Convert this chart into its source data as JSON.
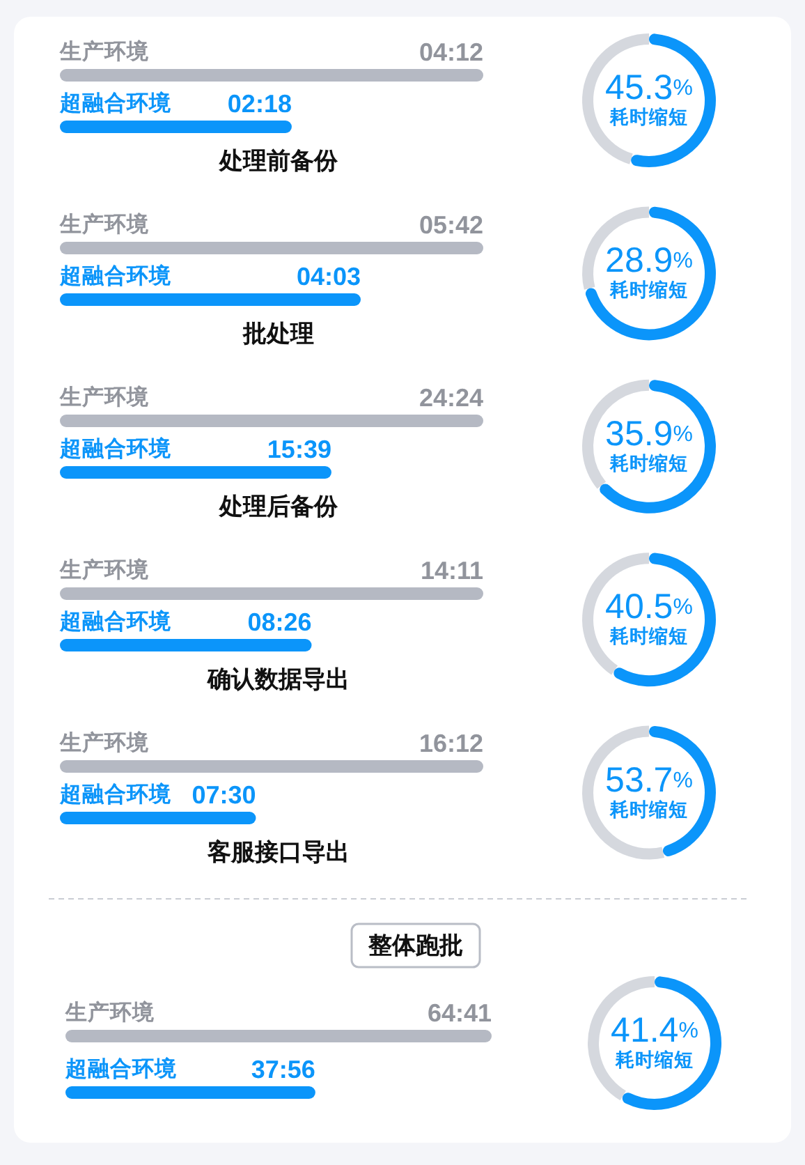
{
  "chart_data": [
    {
      "type": "bar",
      "orientation": "horizontal",
      "title": "处理前备份",
      "categories": [
        "生产环境",
        "超融合环境"
      ],
      "values": [
        252,
        138
      ],
      "colors": [
        "#b5b9c3",
        "#0b95fa"
      ],
      "value_labels": [
        "04:12",
        "02:18"
      ]
    },
    {
      "type": "donut",
      "categories": [
        null,
        "耗时缩短"
      ],
      "values": [
        54.7,
        45.3
      ],
      "colors": [
        "#0b95fa",
        "#d5d8de"
      ],
      "value_labels": [
        null,
        "45.3%"
      ]
    },
    {
      "type": "bar",
      "orientation": "horizontal",
      "title": "批处理",
      "categories": [
        "生产环境",
        "超融合环境"
      ],
      "values": [
        342,
        243
      ],
      "colors": [
        "#b5b9c3",
        "#0b95fa"
      ],
      "value_labels": [
        "05:42",
        "04:03"
      ]
    },
    {
      "type": "donut",
      "categories": [
        null,
        "耗时缩短"
      ],
      "values": [
        71.1,
        28.9
      ],
      "colors": [
        "#0b95fa",
        "#d5d8de"
      ],
      "value_labels": [
        null,
        "28.9%"
      ]
    },
    {
      "type": "bar",
      "orientation": "horizontal",
      "title": "处理后备份",
      "categories": [
        "生产环境",
        "超融合环境"
      ],
      "values": [
        1464,
        939
      ],
      "colors": [
        "#b5b9c3",
        "#0b95fa"
      ],
      "value_labels": [
        "24:24",
        "15:39"
      ]
    },
    {
      "type": "donut",
      "categories": [
        null,
        "耗时缩短"
      ],
      "values": [
        64.1,
        35.9
      ],
      "colors": [
        "#0b95fa",
        "#d5d8de"
      ],
      "value_labels": [
        null,
        "35.9%"
      ]
    },
    {
      "type": "bar",
      "orientation": "horizontal",
      "title": "确认数据导出",
      "categories": [
        "生产环境",
        "超融合环境"
      ],
      "values": [
        851,
        506
      ],
      "colors": [
        "#b5b9c3",
        "#0b95fa"
      ],
      "value_labels": [
        "14:11",
        "08:26"
      ]
    },
    {
      "type": "donut",
      "categories": [
        null,
        "耗时缩短"
      ],
      "values": [
        59.5,
        40.5
      ],
      "colors": [
        "#0b95fa",
        "#d5d8de"
      ],
      "value_labels": [
        null,
        "40.5%"
      ]
    },
    {
      "type": "bar",
      "orientation": "horizontal",
      "title": "客服接口导出",
      "categories": [
        "生产环境",
        "超融合环境"
      ],
      "values": [
        972,
        450
      ],
      "colors": [
        "#b5b9c3",
        "#0b95fa"
      ],
      "value_labels": [
        "16:12",
        "07:30"
      ]
    },
    {
      "type": "donut",
      "categories": [
        null,
        "耗时缩短"
      ],
      "values": [
        46.3,
        53.7
      ],
      "colors": [
        "#0b95fa",
        "#d5d8de"
      ],
      "value_labels": [
        null,
        "53.7%"
      ]
    },
    {
      "type": "bar",
      "orientation": "horizontal",
      "title": "整体跑批",
      "categories": [
        "生产环境",
        "超融合环境"
      ],
      "values": [
        3881,
        2276
      ],
      "colors": [
        "#b5b9c3",
        "#0b95fa"
      ],
      "value_labels": [
        "64:41",
        "37:56"
      ]
    },
    {
      "type": "donut",
      "categories": [
        null,
        "耗时缩短"
      ],
      "values": [
        58.6,
        41.4
      ],
      "colors": [
        "#0b95fa",
        "#d5d8de"
      ],
      "value_labels": [
        null,
        "41.4%"
      ]
    }
  ]
}
